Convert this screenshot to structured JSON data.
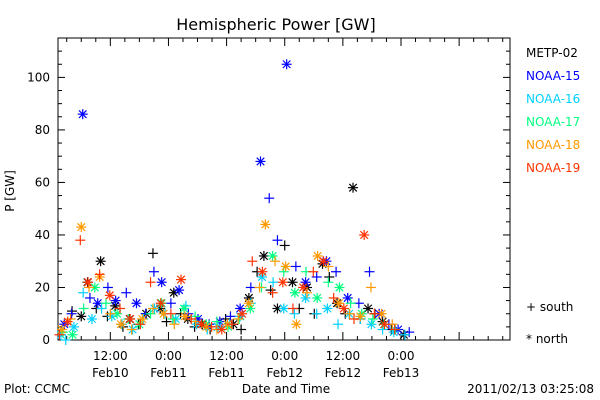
{
  "chart_data": {
    "type": "scatter",
    "title": "Hemispheric Power [GW]",
    "ylabel": "P [GW]",
    "xlabel": "Date and Time",
    "ylim": [
      0,
      115
    ],
    "yticks": [
      0,
      20,
      40,
      60,
      80,
      100
    ],
    "x_unit": "hours since 2011-02-09 00:00 UT",
    "xlim": [
      1.2,
      94.5
    ],
    "xticks": [
      {
        "x": 12,
        "time": "12:00",
        "date": "Feb10"
      },
      {
        "x": 24,
        "time": "0:00",
        "date": "Feb11"
      },
      {
        "x": 36,
        "time": "12:00",
        "date": "Feb11"
      },
      {
        "x": 48,
        "time": "0:00",
        "date": "Feb12"
      },
      {
        "x": 60,
        "time": "12:00",
        "date": "Feb12"
      },
      {
        "x": 72,
        "time": "0:00",
        "date": "Feb13"
      }
    ],
    "marker_legend": [
      {
        "symbol": "+",
        "label": "south"
      },
      {
        "symbol": "*",
        "label": "north"
      }
    ],
    "series": [
      {
        "name": "METP-02",
        "color": "#000000",
        "points": [
          [
            4.1,
            11,
            "p"
          ],
          [
            6.0,
            9,
            "s"
          ],
          [
            7.3,
            22,
            "s"
          ],
          [
            9.1,
            12,
            "p"
          ],
          [
            10.0,
            30,
            "s"
          ],
          [
            11.4,
            9,
            "p"
          ],
          [
            13.0,
            13,
            "s"
          ],
          [
            14.6,
            5,
            "p"
          ],
          [
            16.0,
            8,
            "s"
          ],
          [
            17.8,
            6,
            "p"
          ],
          [
            19.4,
            10,
            "s"
          ],
          [
            20.8,
            33,
            "p"
          ],
          [
            22.3,
            12,
            "s"
          ],
          [
            23.6,
            7,
            "p"
          ],
          [
            25.1,
            18,
            "s"
          ],
          [
            26.5,
            10,
            "p"
          ],
          [
            28.0,
            8,
            "s"
          ],
          [
            29.4,
            5,
            "p"
          ],
          [
            31.0,
            6,
            "s"
          ],
          [
            32.6,
            4,
            "p"
          ],
          [
            34.2,
            5,
            "s"
          ],
          [
            35.8,
            8,
            "p"
          ],
          [
            37.4,
            6,
            "s"
          ],
          [
            39.0,
            4,
            "p"
          ],
          [
            40.6,
            16,
            "s"
          ],
          [
            42.3,
            26,
            "p"
          ],
          [
            43.7,
            32,
            "s"
          ],
          [
            45.1,
            19,
            "p"
          ],
          [
            46.5,
            12,
            "s"
          ],
          [
            48.0,
            36,
            "p"
          ],
          [
            49.6,
            22,
            "s"
          ],
          [
            51.0,
            12,
            "p"
          ],
          [
            52.6,
            20,
            "s"
          ],
          [
            54.1,
            10,
            "p"
          ],
          [
            55.8,
            29,
            "s"
          ],
          [
            57.2,
            24,
            "p"
          ],
          [
            58.8,
            14,
            "s"
          ],
          [
            60.5,
            10,
            "p"
          ],
          [
            62.1,
            58,
            "s"
          ],
          [
            63.6,
            8,
            "p"
          ],
          [
            65.2,
            12,
            "s"
          ],
          [
            66.6,
            10,
            "p"
          ],
          [
            68.2,
            7,
            "s"
          ],
          [
            70.0,
            4,
            "p"
          ],
          [
            72.6,
            2,
            "s"
          ]
        ]
      },
      {
        "name": "NOAA-15",
        "color": "#0000ff",
        "points": [
          [
            2.5,
            6,
            "s"
          ],
          [
            4.0,
            10,
            "p"
          ],
          [
            6.3,
            86,
            "s"
          ],
          [
            7.8,
            16,
            "p"
          ],
          [
            9.4,
            14,
            "s"
          ],
          [
            11.5,
            20,
            "p"
          ],
          [
            13.1,
            15,
            "s"
          ],
          [
            15.3,
            18,
            "p"
          ],
          [
            17.4,
            14,
            "s"
          ],
          [
            19.3,
            10,
            "p"
          ],
          [
            21.0,
            26,
            "p"
          ],
          [
            22.6,
            22,
            "s"
          ],
          [
            24.5,
            14,
            "p"
          ],
          [
            26.2,
            19,
            "s"
          ],
          [
            28.1,
            10,
            "p"
          ],
          [
            30.1,
            8,
            "s"
          ],
          [
            32.4,
            6,
            "p"
          ],
          [
            34.6,
            7,
            "s"
          ],
          [
            36.8,
            9,
            "p"
          ],
          [
            38.8,
            12,
            "s"
          ],
          [
            41.0,
            20,
            "p"
          ],
          [
            43.0,
            68,
            "s"
          ],
          [
            44.8,
            54,
            "p"
          ],
          [
            46.5,
            38,
            "p"
          ],
          [
            48.4,
            105,
            "s"
          ],
          [
            50.3,
            28,
            "p"
          ],
          [
            52.3,
            22,
            "s"
          ],
          [
            54.6,
            24,
            "p"
          ],
          [
            56.6,
            30,
            "s"
          ],
          [
            58.6,
            26,
            "p"
          ],
          [
            61.0,
            16,
            "s"
          ],
          [
            63.3,
            14,
            "p"
          ],
          [
            65.5,
            26,
            "p"
          ],
          [
            67.5,
            10,
            "s"
          ],
          [
            69.5,
            6,
            "p"
          ],
          [
            71.4,
            4,
            "s"
          ],
          [
            73.7,
            3,
            "p"
          ]
        ]
      },
      {
        "name": "NOAA-16",
        "color": "#00d0ff",
        "points": [
          [
            1.8,
            2,
            "s"
          ],
          [
            2.8,
            0,
            "p"
          ],
          [
            4.5,
            5,
            "s"
          ],
          [
            6.4,
            18,
            "p"
          ],
          [
            8.2,
            8,
            "s"
          ],
          [
            10.2,
            12,
            "p"
          ],
          [
            12.3,
            9,
            "s"
          ],
          [
            14.4,
            6,
            "p"
          ],
          [
            16.6,
            4,
            "s"
          ],
          [
            18.8,
            8,
            "p"
          ],
          [
            21.1,
            12,
            "s"
          ],
          [
            23.3,
            10,
            "p"
          ],
          [
            25.5,
            8,
            "s"
          ],
          [
            27.6,
            13,
            "p"
          ],
          [
            29.8,
            6,
            "s"
          ],
          [
            32.0,
            4,
            "p"
          ],
          [
            34.2,
            5,
            "s"
          ],
          [
            36.6,
            6,
            "p"
          ],
          [
            38.8,
            9,
            "s"
          ],
          [
            41.0,
            14,
            "p"
          ],
          [
            43.3,
            24,
            "s"
          ],
          [
            45.6,
            22,
            "p"
          ],
          [
            47.8,
            12,
            "s"
          ],
          [
            50.0,
            10,
            "p"
          ],
          [
            52.3,
            16,
            "s"
          ],
          [
            54.6,
            10,
            "p"
          ],
          [
            56.8,
            12,
            "s"
          ],
          [
            59.0,
            6,
            "p"
          ],
          [
            61.3,
            10,
            "s"
          ],
          [
            63.6,
            8,
            "p"
          ],
          [
            65.9,
            6,
            "s"
          ],
          [
            68.2,
            4,
            "p"
          ],
          [
            70.5,
            3,
            "s"
          ],
          [
            72.8,
            2,
            "p"
          ]
        ]
      },
      {
        "name": "NOAA-17",
        "color": "#00ff80",
        "points": [
          [
            2.2,
            3,
            "p"
          ],
          [
            4.2,
            2,
            "s"
          ],
          [
            6.5,
            12,
            "p"
          ],
          [
            8.8,
            20,
            "s"
          ],
          [
            11.1,
            14,
            "p"
          ],
          [
            13.4,
            10,
            "s"
          ],
          [
            15.7,
            8,
            "p"
          ],
          [
            18.0,
            6,
            "s"
          ],
          [
            20.3,
            10,
            "p"
          ],
          [
            22.6,
            14,
            "s"
          ],
          [
            24.9,
            8,
            "p"
          ],
          [
            27.2,
            12,
            "s"
          ],
          [
            29.5,
            9,
            "p"
          ],
          [
            31.8,
            6,
            "s"
          ],
          [
            34.0,
            7,
            "p"
          ],
          [
            36.3,
            5,
            "s"
          ],
          [
            38.6,
            8,
            "p"
          ],
          [
            40.9,
            12,
            "s"
          ],
          [
            43.2,
            20,
            "p"
          ],
          [
            45.5,
            32,
            "s"
          ],
          [
            47.8,
            26,
            "p"
          ],
          [
            50.1,
            18,
            "s"
          ],
          [
            52.4,
            26,
            "p"
          ],
          [
            54.7,
            16,
            "s"
          ],
          [
            57.0,
            22,
            "p"
          ],
          [
            59.3,
            20,
            "s"
          ],
          [
            61.6,
            14,
            "p"
          ],
          [
            63.9,
            10,
            "s"
          ],
          [
            66.2,
            8,
            "p"
          ],
          [
            68.5,
            6,
            "s"
          ],
          [
            70.8,
            4,
            "p"
          ]
        ]
      },
      {
        "name": "NOAA-18",
        "color": "#ff9900",
        "points": [
          [
            2.0,
            4,
            "s"
          ],
          [
            3.8,
            8,
            "p"
          ],
          [
            6.0,
            43,
            "s"
          ],
          [
            7.6,
            20,
            "p"
          ],
          [
            9.8,
            24,
            "s"
          ],
          [
            12.0,
            10,
            "p"
          ],
          [
            14.2,
            6,
            "s"
          ],
          [
            16.4,
            4,
            "p"
          ],
          [
            18.6,
            8,
            "s"
          ],
          [
            20.8,
            12,
            "p"
          ],
          [
            23.0,
            10,
            "s"
          ],
          [
            25.2,
            6,
            "p"
          ],
          [
            27.4,
            9,
            "s"
          ],
          [
            29.6,
            7,
            "p"
          ],
          [
            31.8,
            5,
            "s"
          ],
          [
            34.0,
            4,
            "p"
          ],
          [
            36.2,
            6,
            "s"
          ],
          [
            38.4,
            8,
            "p"
          ],
          [
            40.6,
            14,
            "s"
          ],
          [
            42.8,
            20,
            "p"
          ],
          [
            44.0,
            44,
            "s"
          ],
          [
            46.0,
            30,
            "p"
          ],
          [
            48.2,
            28,
            "s"
          ],
          [
            50.4,
            6,
            "s"
          ],
          [
            52.6,
            18,
            "p"
          ],
          [
            54.8,
            32,
            "s"
          ],
          [
            57.0,
            28,
            "p"
          ],
          [
            59.2,
            14,
            "s"
          ],
          [
            61.4,
            10,
            "p"
          ],
          [
            63.6,
            9,
            "s"
          ],
          [
            65.8,
            20,
            "p"
          ],
          [
            68.0,
            10,
            "s"
          ],
          [
            70.2,
            6,
            "p"
          ]
        ]
      },
      {
        "name": "NOAA-19",
        "color": "#ff3300",
        "points": [
          [
            1.5,
            2,
            "p"
          ],
          [
            3.2,
            7,
            "s"
          ],
          [
            5.8,
            38,
            "p"
          ],
          [
            7.4,
            22,
            "s"
          ],
          [
            9.8,
            25,
            "p"
          ],
          [
            11.9,
            17,
            "s"
          ],
          [
            14.0,
            12,
            "p"
          ],
          [
            16.1,
            8,
            "s"
          ],
          [
            18.2,
            6,
            "p"
          ],
          [
            20.3,
            22,
            "p"
          ],
          [
            22.4,
            14,
            "s"
          ],
          [
            24.5,
            10,
            "p"
          ],
          [
            26.6,
            23,
            "s"
          ],
          [
            28.7,
            8,
            "p"
          ],
          [
            30.8,
            6,
            "s"
          ],
          [
            32.9,
            5,
            "p"
          ],
          [
            35.0,
            4,
            "s"
          ],
          [
            37.1,
            6,
            "p"
          ],
          [
            39.2,
            10,
            "s"
          ],
          [
            41.3,
            30,
            "p"
          ],
          [
            43.4,
            26,
            "s"
          ],
          [
            45.5,
            18,
            "p"
          ],
          [
            47.6,
            22,
            "s"
          ],
          [
            49.7,
            12,
            "p"
          ],
          [
            51.8,
            20,
            "s"
          ],
          [
            53.9,
            26,
            "p"
          ],
          [
            56.0,
            30,
            "s"
          ],
          [
            58.1,
            16,
            "p"
          ],
          [
            60.2,
            12,
            "s"
          ],
          [
            62.3,
            8,
            "p"
          ],
          [
            64.4,
            40,
            "s"
          ],
          [
            66.5,
            10,
            "p"
          ],
          [
            68.6,
            6,
            "s"
          ],
          [
            70.7,
            4,
            "p"
          ]
        ]
      }
    ]
  },
  "footer": {
    "left": "Plot: CCMC",
    "center": "Date and Time",
    "right": "2011/02/13 03:25:08"
  }
}
